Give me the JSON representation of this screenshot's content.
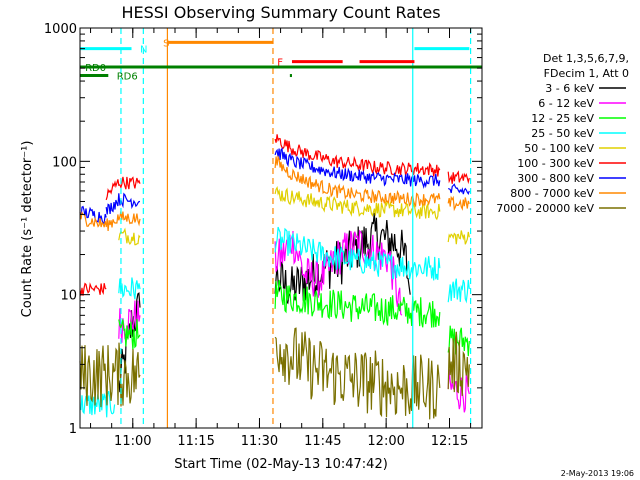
{
  "chart_data": {
    "type": "line",
    "title": "HESSI Observing Summary Count Rates",
    "xlabel": "Start Time (02-May-13 10:47:42)",
    "ylabel": "Count Rate (s⁻¹ detector⁻¹)",
    "ylim": [
      1,
      1000
    ],
    "yscale": "log",
    "xlim_minutes": [
      -0.2,
      95
    ],
    "y_ticks": [
      {
        "value": 1,
        "label": "1"
      },
      {
        "value": 10,
        "label": "10"
      },
      {
        "value": 100,
        "label": "100"
      },
      {
        "value": 1000,
        "label": "1000"
      }
    ],
    "x_ticks": [
      {
        "minute": 12.3,
        "label": "11:00"
      },
      {
        "minute": 27.3,
        "label": "11:15"
      },
      {
        "minute": 42.3,
        "label": "11:30"
      },
      {
        "minute": 57.3,
        "label": "11:45"
      },
      {
        "minute": 72.3,
        "label": "12:00"
      },
      {
        "minute": 87.3,
        "label": "12:15"
      }
    ],
    "legend_header": [
      "Det 1,3,5,6,7,9,",
      "FDecim 1, Att 0"
    ],
    "legend_position": "right",
    "series": [
      {
        "name": "3 - 6 keV",
        "color": "#000000",
        "noise": 0.18,
        "segments": [
          [
            [
              9,
              2
            ],
            [
              11,
              4
            ],
            [
              12,
              6
            ],
            [
              14,
              8
            ]
          ],
          [
            [
              46,
              14
            ],
            [
              48,
              12
            ],
            [
              50,
              11
            ],
            [
              52,
              12
            ],
            [
              55,
              14
            ],
            [
              58,
              16
            ],
            [
              62,
              18
            ],
            [
              65,
              22
            ],
            [
              68,
              25
            ],
            [
              70,
              28
            ],
            [
              72,
              26
            ],
            [
              75,
              24
            ],
            [
              77,
              18
            ],
            [
              78,
              10
            ]
          ]
        ]
      },
      {
        "name": "6 - 12 keV",
        "color": "#ff00ff",
        "noise": 0.15,
        "segments": [
          [
            [
              9,
              6
            ],
            [
              14,
              7
            ]
          ],
          [
            [
              46,
              18
            ],
            [
              48,
              20
            ],
            [
              50,
              26
            ],
            [
              51,
              22
            ],
            [
              53,
              14
            ],
            [
              56,
              13
            ],
            [
              58,
              14
            ],
            [
              60,
              18
            ],
            [
              63,
              22
            ],
            [
              66,
              24
            ],
            [
              68,
              22
            ],
            [
              71,
              20
            ],
            [
              73,
              19
            ],
            [
              75,
              10
            ],
            [
              76,
              7
            ]
          ],
          [
            [
              87,
              2.0
            ],
            [
              92,
              1.8
            ]
          ]
        ]
      },
      {
        "name": "12 - 25 keV",
        "color": "#00ff00",
        "noise": 0.12,
        "segments": [
          [
            [
              9,
              5
            ],
            [
              14,
              5
            ]
          ],
          [
            [
              46,
              10
            ],
            [
              50,
              9.5
            ],
            [
              55,
              9
            ],
            [
              60,
              8.5
            ],
            [
              65,
              8
            ],
            [
              70,
              7.8
            ],
            [
              76,
              7.6
            ],
            [
              80,
              7.5
            ],
            [
              85,
              7.4
            ]
          ],
          [
            [
              87,
              4.5
            ],
            [
              92,
              4.5
            ]
          ]
        ]
      },
      {
        "name": "25 - 50 keV",
        "color": "#00ffff",
        "noise": 0.1,
        "segments": [
          [
            [
              -0.2,
              1.5
            ],
            [
              8,
              1.5
            ]
          ],
          [
            [
              9,
              11
            ],
            [
              14,
              11
            ]
          ],
          [
            [
              46,
              26
            ],
            [
              50,
              24
            ],
            [
              55,
              21
            ],
            [
              60,
              19
            ],
            [
              65,
              18
            ],
            [
              70,
              17
            ],
            [
              75,
              16.5
            ],
            [
              80,
              16
            ],
            [
              85,
              15.8
            ]
          ],
          [
            [
              87,
              11
            ],
            [
              92,
              11
            ]
          ]
        ]
      },
      {
        "name": "50 - 100 keV",
        "color": "#e0d000",
        "noise": 0.06,
        "segments": [
          [
            [
              9,
              28
            ],
            [
              14,
              27
            ]
          ],
          [
            [
              46,
              58
            ],
            [
              50,
              54
            ],
            [
              55,
              50
            ],
            [
              60,
              47
            ],
            [
              65,
              45
            ],
            [
              70,
              44
            ],
            [
              75,
              43
            ],
            [
              80,
              42
            ],
            [
              85,
              42
            ]
          ],
          [
            [
              87,
              27
            ],
            [
              92,
              27
            ]
          ]
        ]
      },
      {
        "name": "100 - 300 keV",
        "color": "#ff0000",
        "noise": 0.05,
        "segments": [
          [
            [
              -0.2,
              11
            ],
            [
              6,
              11
            ]
          ],
          [
            [
              6,
              55
            ],
            [
              9,
              70
            ],
            [
              14,
              68
            ]
          ],
          [
            [
              46,
              150
            ],
            [
              50,
              125
            ],
            [
              55,
              110
            ],
            [
              60,
              100
            ],
            [
              65,
              95
            ],
            [
              70,
              90
            ],
            [
              75,
              88
            ],
            [
              80,
              88
            ],
            [
              85,
              86
            ]
          ],
          [
            [
              87,
              75
            ],
            [
              92,
              75
            ]
          ]
        ]
      },
      {
        "name": "300 - 800 keV",
        "color": "#0000ff",
        "noise": 0.05,
        "segments": [
          [
            [
              -0.2,
              42
            ],
            [
              6,
              38
            ]
          ],
          [
            [
              6,
              42
            ],
            [
              9,
              52
            ],
            [
              14,
              50
            ]
          ],
          [
            [
              46,
              120
            ],
            [
              50,
              100
            ],
            [
              55,
              90
            ],
            [
              60,
              82
            ],
            [
              65,
              78
            ],
            [
              70,
              75
            ],
            [
              75,
              73
            ],
            [
              80,
              72
            ],
            [
              85,
              72
            ]
          ],
          [
            [
              87,
              60
            ],
            [
              92,
              60
            ]
          ]
        ]
      },
      {
        "name": "800 - 7000 keV",
        "color": "#ff8800",
        "noise": 0.05,
        "segments": [
          [
            [
              -0.2,
              38
            ],
            [
              6,
              33
            ]
          ],
          [
            [
              6,
              33
            ],
            [
              9,
              38
            ],
            [
              14,
              37
            ]
          ],
          [
            [
              46,
              100
            ],
            [
              50,
              80
            ],
            [
              55,
              68
            ],
            [
              60,
              60
            ],
            [
              65,
              56
            ],
            [
              70,
              54
            ],
            [
              75,
              53
            ],
            [
              80,
              52
            ],
            [
              85,
              52
            ]
          ],
          [
            [
              87,
              48
            ],
            [
              92,
              48
            ]
          ]
        ]
      },
      {
        "name": "7000 - 20000 keV",
        "color": "#7a7000",
        "noise": 0.25,
        "segments": [
          [
            [
              -0.2,
              2.5
            ],
            [
              14,
              2.5
            ]
          ],
          [
            [
              46,
              4.5
            ],
            [
              50,
              3.5
            ],
            [
              55,
              2.8
            ],
            [
              60,
              2.5
            ],
            [
              65,
              2.3
            ],
            [
              70,
              2.2
            ],
            [
              75,
              2.0
            ],
            [
              80,
              2.0
            ],
            [
              85,
              2.0
            ]
          ],
          [
            [
              87,
              3
            ],
            [
              92,
              3
            ]
          ]
        ]
      }
    ],
    "verticals": [
      {
        "minute": 9.5,
        "color": "#00ffff",
        "style": "dashed"
      },
      {
        "minute": 14.8,
        "color": "#00ffff",
        "style": "dashed"
      },
      {
        "minute": 20.5,
        "color": "#ff8800",
        "style": "solid"
      },
      {
        "minute": 45.5,
        "color": "#ff8800",
        "style": "dashed"
      },
      {
        "minute": 78.6,
        "color": "#00ffff",
        "style": "solid"
      },
      {
        "minute": 92.3,
        "color": "#00ffff",
        "style": "dashed"
      }
    ],
    "flags": [
      {
        "label": "N",
        "color": "#00ffff",
        "value": 700,
        "spans": [
          [
            -0.2,
            12
          ]
        ],
        "label_at": 14
      },
      {
        "label": "S",
        "color": "#ff8800",
        "value": 780,
        "spans": [
          [
            20.5,
            45.5
          ]
        ],
        "label_at": 19.5
      },
      {
        "label": "F",
        "color": "#ff0000",
        "value": 560,
        "spans": [
          [
            50,
            62
          ],
          [
            66,
            79
          ]
        ],
        "label_at": 46.5
      },
      {
        "label": "",
        "color": "#00ffff",
        "value": 700,
        "spans": [
          [
            79,
            92
          ]
        ],
        "label_at": null
      },
      {
        "label": "RD0",
        "color": "#008000",
        "value": 510,
        "spans": [
          [
            -0.2,
            95
          ]
        ],
        "label_at": 1
      },
      {
        "label": "RD6",
        "color": "#008000",
        "value": 440,
        "spans": [
          [
            -0.2,
            6.5
          ],
          [
            49.5,
            50
          ]
        ],
        "label_at": 8.5
      }
    ]
  },
  "timestamp": "2-May-2013 19:06"
}
